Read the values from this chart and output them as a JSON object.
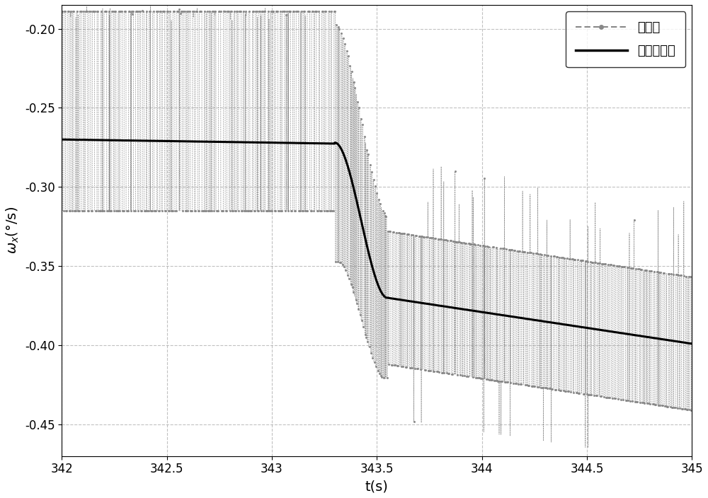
{
  "xlabel": "t(s)",
  "ylabel": "$\\omega_x$(°/s)",
  "xlim": [
    342,
    345
  ],
  "ylim": [
    -0.47,
    -0.185
  ],
  "xticks": [
    342,
    342.5,
    343,
    343.5,
    344,
    344.5,
    345
  ],
  "yticks": [
    -0.45,
    -0.4,
    -0.35,
    -0.3,
    -0.25,
    -0.2
  ],
  "legend1": "角速度",
  "legend2": "平滑角速度",
  "noisy_color": "#888888",
  "smooth_color": "#000000",
  "background_color": "#ffffff",
  "grid_color": "#aaaaaa",
  "figsize": [
    10.0,
    7.04
  ],
  "dpi": 100
}
